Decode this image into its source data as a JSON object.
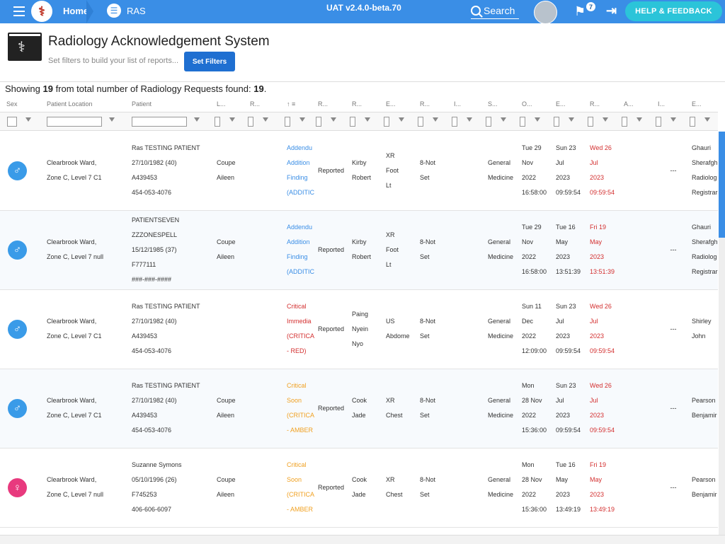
{
  "topbar": {
    "home_label": "Home",
    "ras_label": "RAS",
    "version": "UAT v2.4.0-beta.70",
    "search_label": "Search",
    "notification_count": "7",
    "help_label": "HELP & FEEDBACK",
    "color": "#3a8ee6"
  },
  "header": {
    "title": "Radiology Acknowledgement System",
    "subtitle": "Set filters to build your list of reports...",
    "set_filters_label": "Set Filters"
  },
  "summary": {
    "prefix": "Showing ",
    "shown": "19",
    "middle": " from total number of Radiology Requests found: ",
    "total": "19",
    "suffix": "."
  },
  "columns": [
    "Sex",
    "Patient Location",
    "Patient",
    "L...",
    "R...",
    "↑ ≡",
    "R...",
    "R...",
    "E...",
    "R...",
    "I...",
    "S...",
    "O...",
    "E...",
    "R...",
    "A...",
    "I...",
    "E..."
  ],
  "rows": [
    {
      "sex": "male",
      "location": "Clearbrook Ward,\nZone C, Level 7 C1",
      "patient": "Ras TESTING PATIENT\n27/10/1982 (40)\nA439453\n454-053-4076",
      "l": "Coupe\nAileen",
      "summary": "Addendu\nAddition\nFinding\n(ADDITIC",
      "summary_color": "#3a8ee6",
      "status": "Reported",
      "radiologist": "Kirby\nRobert",
      "exam": "XR\nFoot\nLt",
      "r": "8-Not\nSet",
      "s": "General\nMedicine",
      "ordered": "Tue 29\nNov\n2022\n16:58:00",
      "exam_date": "Sun 23\nJul\n2023\n09:59:54",
      "reported": "Wed 26\nJul\n2023\n09:59:54",
      "a": "---",
      "e": "Ghauri\nSherafgh\nRadiolog\nRegistrar"
    },
    {
      "sex": "male",
      "location": "Clearbrook Ward,\nZone C, Level 7 null",
      "patient": "PATIENTSEVEN\nZZZONESPELL\n15/12/1985 (37)\nF777111\n###-###-####",
      "l": "Coupe\nAileen",
      "summary": "Addendu\nAddition\nFinding\n(ADDITIC",
      "summary_color": "#3a8ee6",
      "status": "Reported",
      "radiologist": "Kirby\nRobert",
      "exam": "XR\nFoot\nLt",
      "r": "8-Not\nSet",
      "s": "General\nMedicine",
      "ordered": "Tue 29\nNov\n2022\n16:58:00",
      "exam_date": "Tue 16\nMay\n2023\n13:51:39",
      "reported": "Fri 19\nMay\n2023\n13:51:39",
      "a": "---",
      "e": "Ghauri\nSherafgh\nRadiolog\nRegistrar"
    },
    {
      "sex": "male",
      "location": "Clearbrook Ward,\nZone C, Level 7 C1",
      "patient": "Ras TESTING PATIENT\n27/10/1982 (40)\nA439453\n454-053-4076",
      "l": "",
      "summary": "Critical\nImmedia\n(CRITICA\n- RED)",
      "summary_color": "#d32f2f",
      "status": "Reported",
      "radiologist": "Paing\nNyein\nNyo",
      "exam": "US\nAbdome",
      "r": "8-Not\nSet",
      "s": "General\nMedicine",
      "ordered": "Sun 11\nDec\n2022\n12:09:00",
      "exam_date": "Sun 23\nJul\n2023\n09:59:54",
      "reported": "Wed 26\nJul\n2023\n09:59:54",
      "a": "---",
      "e": "Shirley\nJohn"
    },
    {
      "sex": "male",
      "location": "Clearbrook Ward,\nZone C, Level 7 C1",
      "patient": "Ras TESTING PATIENT\n27/10/1982 (40)\nA439453\n454-053-4076",
      "l": "Coupe\nAileen",
      "summary": "Critical\nSoon\n(CRITICA\n- AMBER",
      "summary_color": "#f0a020",
      "status": "Reported",
      "radiologist": "Cook\nJade",
      "exam": "XR\nChest",
      "r": "8-Not\nSet",
      "s": "General\nMedicine",
      "ordered": "Mon\n28 Nov\n2022\n15:36:00",
      "exam_date": "Sun 23\nJul\n2023\n09:59:54",
      "reported": "Wed 26\nJul\n2023\n09:59:54",
      "a": "---",
      "e": "Pearson\nBenjamir"
    },
    {
      "sex": "female",
      "location": "Clearbrook Ward,\nZone C, Level 7 null",
      "patient": "Suzanne Symons\n05/10/1996 (26)\nF745253\n406-606-6097",
      "l": "Coupe\nAileen",
      "summary": "Critical\nSoon\n(CRITICA\n- AMBER",
      "summary_color": "#f0a020",
      "status": "Reported",
      "radiologist": "Cook\nJade",
      "exam": "XR\nChest",
      "r": "8-Not\nSet",
      "s": "General\nMedicine",
      "ordered": "Mon\n28 Nov\n2022\n15:36:00",
      "exam_date": "Tue 16\nMay\n2023\n13:49:19",
      "reported": "Fri 19\nMay\n2023\n13:49:19",
      "a": "---",
      "e": "Pearson\nBenjamir"
    }
  ],
  "colors": {
    "male": "#3a9be8",
    "female": "#e83a7e",
    "reported_date": "#d32f2f"
  }
}
